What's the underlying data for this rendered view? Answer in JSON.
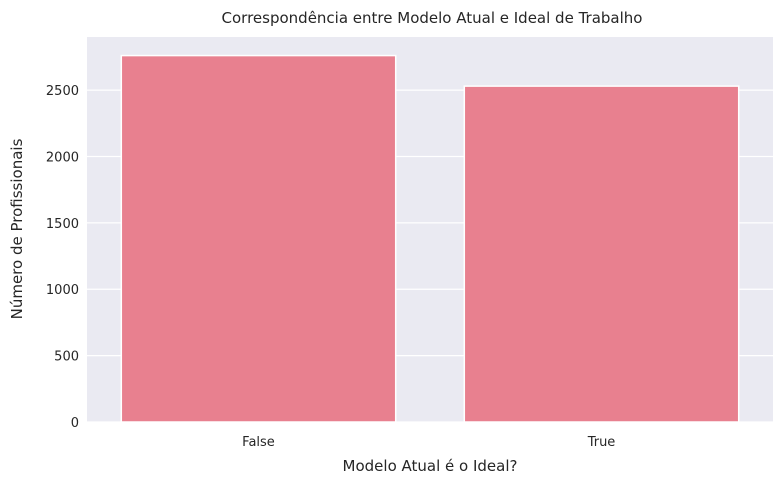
{
  "chart_data": {
    "type": "bar",
    "title": "Correspondência entre Modelo Atual e Ideal de Trabalho",
    "xlabel": "Modelo Atual é o Ideal?",
    "ylabel": "Número de Profissionais",
    "categories": [
      "False",
      "True"
    ],
    "values": [
      2760,
      2530
    ],
    "ylim": [
      0,
      2900
    ],
    "yticks": [
      0,
      500,
      1000,
      1500,
      2000,
      2500
    ],
    "grid": true,
    "bar_color": "#e8808f",
    "background_color": "#eaeaf2",
    "grid_color": "#ffffff"
  }
}
